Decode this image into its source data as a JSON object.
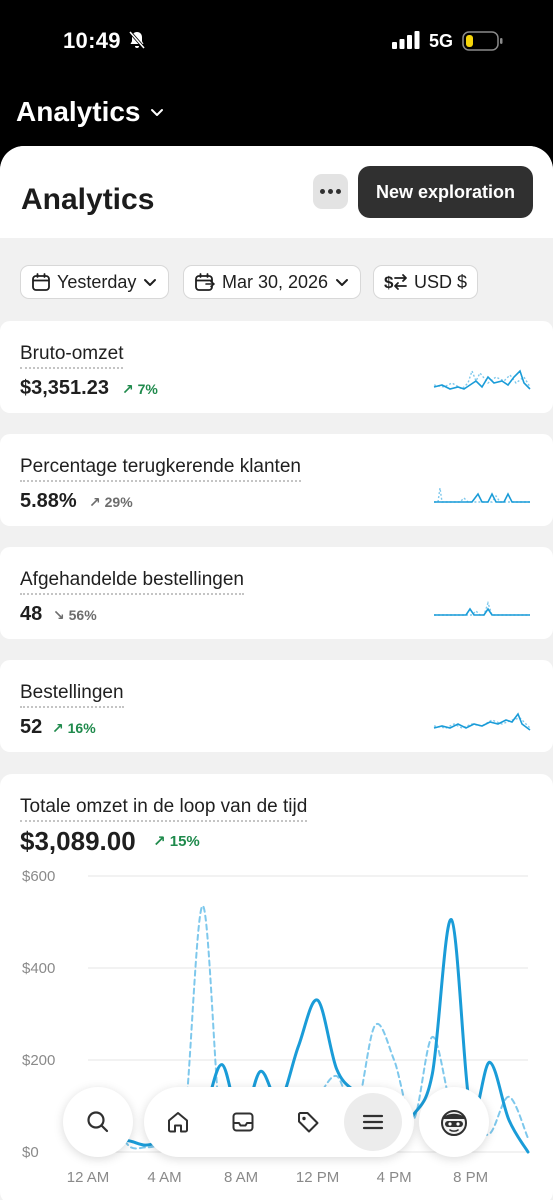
{
  "status": {
    "time": "10:49",
    "network": "5G"
  },
  "header": {
    "title": "Analytics"
  },
  "page": {
    "title": "Analytics",
    "new_exploration_label": "New exploration"
  },
  "filters": {
    "date_range": "Yesterday",
    "comparison_date": "Mar 30, 2026",
    "currency": "USD $"
  },
  "metrics": [
    {
      "title": "Bruto-omzet",
      "value": "$3,351.23",
      "change": "7%",
      "direction": "up",
      "color": "#1f8a4c"
    },
    {
      "title": "Percentage terugkerende klanten",
      "value": "5.88%",
      "change": "29%",
      "direction": "up",
      "color": "#6d6d6d"
    },
    {
      "title": "Afgehandelde bestellingen",
      "value": "48",
      "change": "56%",
      "direction": "down",
      "color": "#6d6d6d"
    },
    {
      "title": "Bestellingen",
      "value": "52",
      "change": "16%",
      "direction": "up",
      "color": "#1f8a4c"
    }
  ],
  "total": {
    "title": "Totale omzet in de loop van de tijd",
    "value": "$3,089.00",
    "change": "15%"
  },
  "chart_data": {
    "type": "line",
    "title": "Totale omzet in de loop van de tijd",
    "xlabel": "",
    "ylabel": "",
    "ylim": [
      0,
      600
    ],
    "y_ticks": [
      "$0",
      "$200",
      "$400",
      "$600"
    ],
    "x_ticks": [
      "12 AM",
      "4 AM",
      "8 AM",
      "12 PM",
      "4 PM",
      "8 PM"
    ],
    "x_tick_hours": [
      0,
      4,
      8,
      12,
      16,
      20
    ],
    "grid": true,
    "series": [
      {
        "style": "solid",
        "color": "#1a9cd8",
        "x": [
          0,
          1,
          2,
          3,
          4,
          5,
          6,
          7,
          8,
          9,
          10,
          11,
          12,
          13,
          14,
          15,
          16,
          17,
          18,
          19,
          20,
          21,
          22,
          23
        ],
        "values": [
          25,
          15,
          25,
          15,
          25,
          35,
          75,
          190,
          60,
          175,
          110,
          230,
          330,
          180,
          130,
          100,
          40,
          80,
          170,
          505,
          90,
          195,
          70,
          0
        ]
      },
      {
        "style": "dashed",
        "color": "#7ec8ec",
        "x": [
          0,
          1,
          2,
          3,
          4,
          5,
          6,
          7,
          8,
          9,
          10,
          11,
          12,
          13,
          14,
          15,
          16,
          17,
          18,
          19,
          20,
          21,
          22,
          23
        ],
        "values": [
          40,
          130,
          20,
          10,
          20,
          50,
          535,
          30,
          100,
          60,
          40,
          80,
          120,
          165,
          90,
          275,
          200,
          70,
          250,
          100,
          60,
          40,
          120,
          30
        ]
      }
    ]
  },
  "tabs": {
    "active": "menu"
  }
}
